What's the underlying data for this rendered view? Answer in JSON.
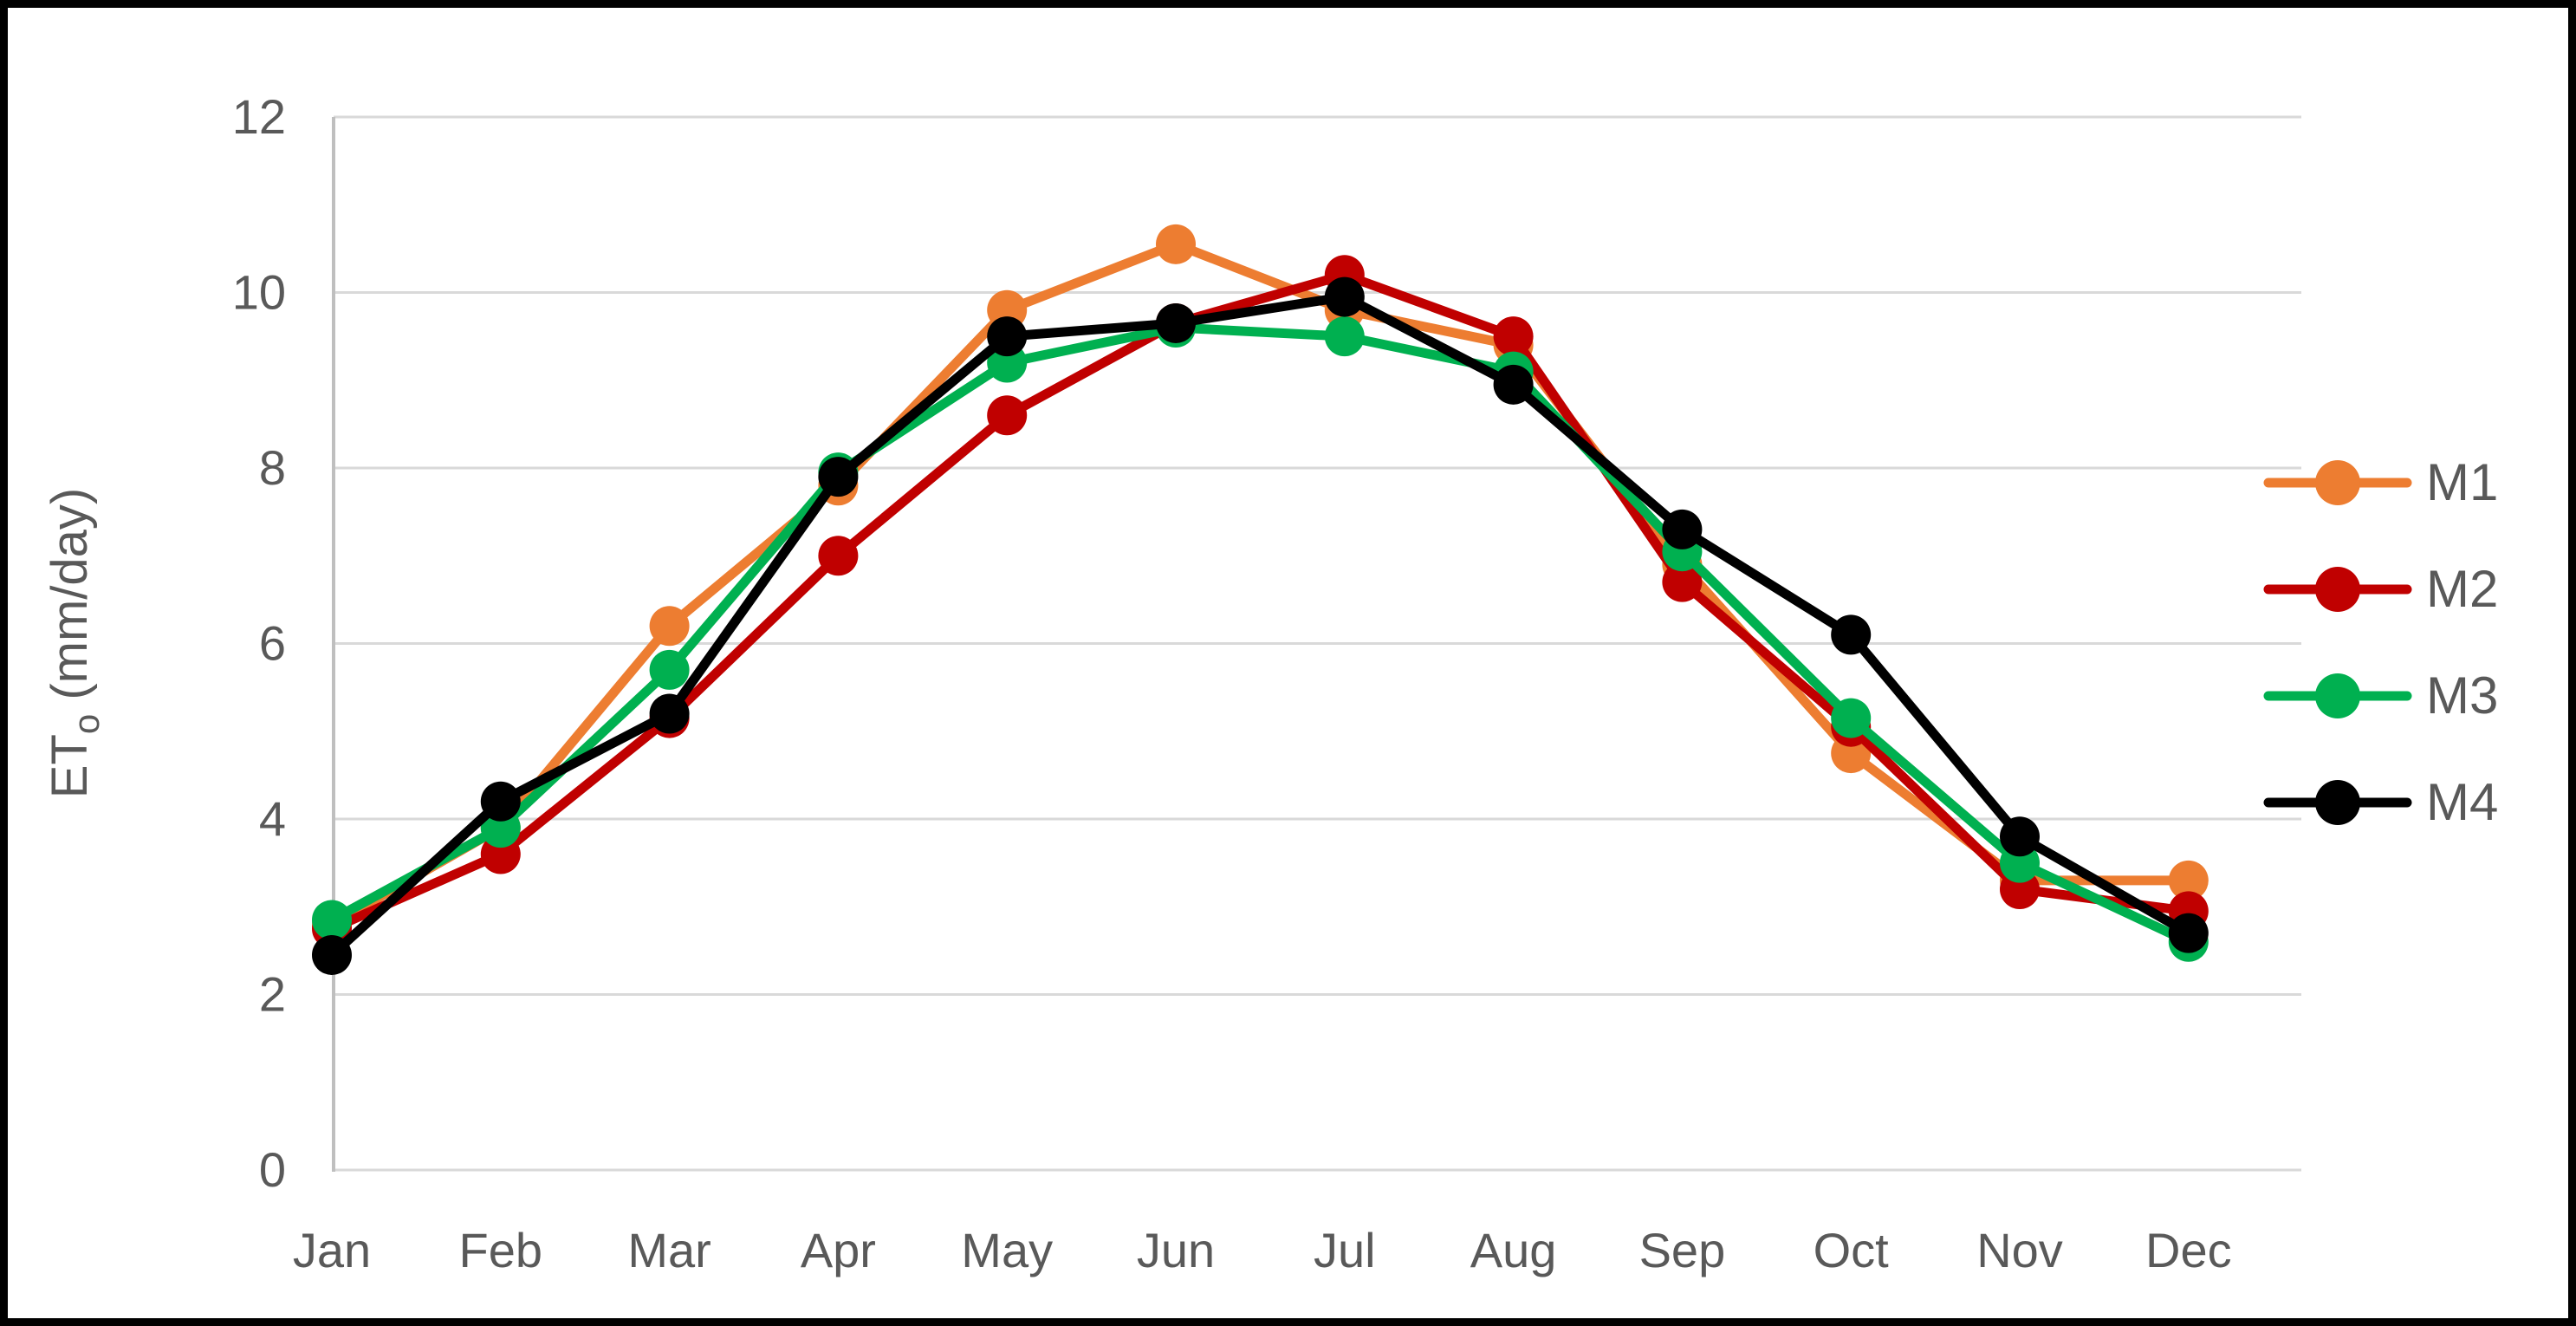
{
  "chart_data": {
    "type": "line",
    "title": "",
    "xlabel": "",
    "ylabel": "ETo (mm/day)",
    "ylabel_parts": {
      "prefix": "ET",
      "subscript": "o",
      "suffix": " (mm/day)"
    },
    "categories": [
      "Jan",
      "Feb",
      "Mar",
      "Apr",
      "May",
      "Jun",
      "Jul",
      "Aug",
      "Sep",
      "Oct",
      "Nov",
      "Dec"
    ],
    "series": [
      {
        "name": "M1",
        "color": "#ED7D31",
        "values": [
          2.8,
          3.9,
          6.2,
          7.8,
          9.8,
          10.55,
          9.8,
          9.4,
          6.9,
          4.75,
          3.3,
          3.3
        ]
      },
      {
        "name": "M2",
        "color": "#C00000",
        "values": [
          2.75,
          3.6,
          5.15,
          7.0,
          8.6,
          9.65,
          10.2,
          9.5,
          6.7,
          5.05,
          3.2,
          2.95
        ]
      },
      {
        "name": "M3",
        "color": "#00B050",
        "values": [
          2.85,
          3.9,
          5.7,
          7.95,
          9.2,
          9.6,
          9.5,
          9.1,
          7.05,
          5.15,
          3.5,
          2.6
        ]
      },
      {
        "name": "M4",
        "color": "#000000",
        "values": [
          2.45,
          4.2,
          5.2,
          7.9,
          9.5,
          9.65,
          9.95,
          8.95,
          7.3,
          6.1,
          3.8,
          2.7
        ]
      }
    ],
    "ylim": [
      0,
      12
    ],
    "yticks": [
      0,
      2,
      4,
      6,
      8,
      10,
      12
    ],
    "grid": true,
    "legend_position": "right",
    "marker": "circle"
  },
  "colors": {
    "text": "#595959",
    "gridline": "#D9D9D9",
    "axis_line": "#BFBFBF",
    "border": "#000000",
    "background": "#FFFFFF"
  }
}
